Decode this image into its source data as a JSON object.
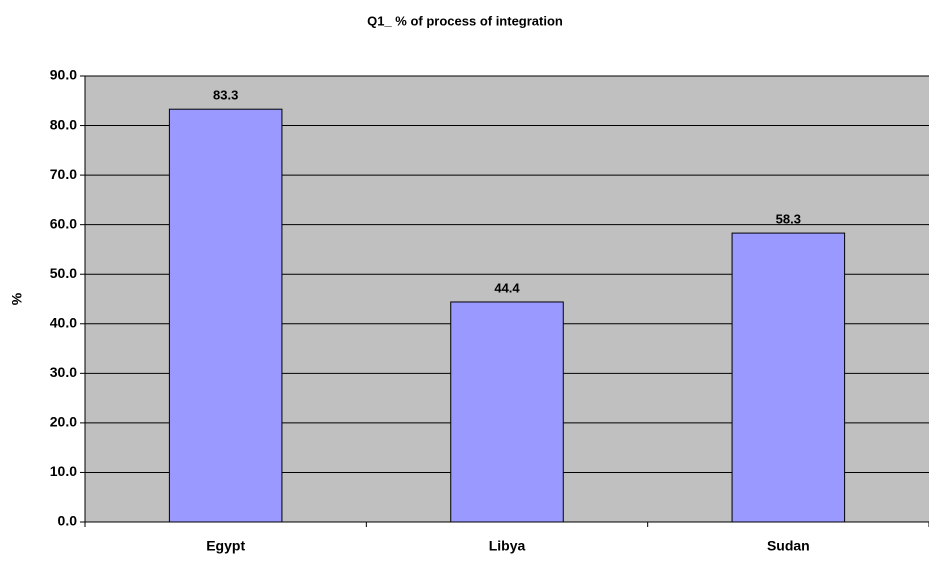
{
  "chart_data": {
    "type": "bar",
    "title": "Q1_ % of process of integration",
    "y_label": "%",
    "categories": [
      "Egypt",
      "Libya",
      "Sudan"
    ],
    "values": [
      83.3,
      44.4,
      58.3
    ],
    "color": "#9999ff",
    "ylim": [
      0,
      90
    ],
    "yticks": [
      {
        "value": 0,
        "label": "0.0"
      },
      {
        "value": 10,
        "label": "10.0"
      },
      {
        "value": 20,
        "label": "20.0"
      },
      {
        "value": 30,
        "label": "30.0"
      },
      {
        "value": 40,
        "label": "40.0"
      },
      {
        "value": 50,
        "label": "50.0"
      },
      {
        "value": 60,
        "label": "60.0"
      },
      {
        "value": 70,
        "label": "70.0"
      },
      {
        "value": 80,
        "label": "80.0"
      },
      {
        "value": 90,
        "label": "90.0"
      }
    ],
    "grid": true
  }
}
